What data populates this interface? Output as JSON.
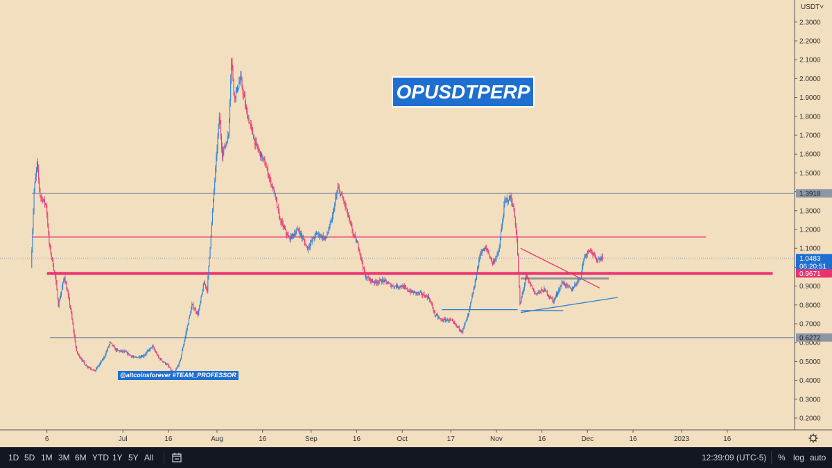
{
  "header": {
    "unit_label": "USDT˅"
  },
  "watermark_text": "OPUSDTPERP",
  "credit_text": "@altcoinsforever #TEAM_PROFESSOR",
  "colors": {
    "background": "#f2dfc0",
    "up_candle": "#2a7fd4",
    "down_candle": "#e8336e",
    "gray_line": "#8f96a3",
    "red_line": "#e8336e",
    "blue_line": "#2a7fd4",
    "last_price_badge": "#1f6fd0",
    "toolbar": "#131722"
  },
  "toolbar": {
    "ranges": [
      "1D",
      "5D",
      "1M",
      "3M",
      "6M",
      "YTD",
      "1Y",
      "5Y",
      "All"
    ],
    "calendar_icon": "calendar-range-icon",
    "time": "12:39:09 (UTC-5)",
    "percent": "%",
    "log": "log",
    "auto": "auto"
  },
  "chart_data": {
    "type": "candlestick",
    "title": "OPUSDTPERP",
    "y_axis_unit": "USDT",
    "ylim": [
      0.1,
      2.3
    ],
    "y_ticks": [
      "0.2000",
      "0.3000",
      "0.4000",
      "0.5000",
      "0.6000",
      "0.7000",
      "0.8000",
      "0.9000",
      "1.0000",
      "1.1000",
      "1.2000",
      "1.3000",
      "1.4000",
      "1.5000",
      "1.6000",
      "1.7000",
      "1.8000",
      "1.9000",
      "2.0000",
      "2.1000",
      "2.2000",
      "2.3000"
    ],
    "x_ticks": [
      {
        "label": "6",
        "date": "2022-06-06"
      },
      {
        "label": "Jul",
        "date": "2022-07-01"
      },
      {
        "label": "16",
        "date": "2022-07-16"
      },
      {
        "label": "Aug",
        "date": "2022-08-01"
      },
      {
        "label": "16",
        "date": "2022-08-16"
      },
      {
        "label": "Sep",
        "date": "2022-09-01"
      },
      {
        "label": "16",
        "date": "2022-09-16"
      },
      {
        "label": "Oct",
        "date": "2022-10-01"
      },
      {
        "label": "17",
        "date": "2022-10-17"
      },
      {
        "label": "Nov",
        "date": "2022-11-01"
      },
      {
        "label": "16",
        "date": "2022-11-16"
      },
      {
        "label": "Dec",
        "date": "2022-12-01"
      },
      {
        "label": "16",
        "date": "2022-12-16"
      },
      {
        "label": "2023",
        "date": "2023-01-01"
      },
      {
        "label": "16",
        "date": "2023-01-16"
      }
    ],
    "price_levels": [
      {
        "label": "1.3918",
        "value": 1.3918,
        "color": "gray"
      },
      {
        "label": "0.6272",
        "value": 0.6272,
        "color": "gray"
      }
    ],
    "last_price": {
      "value": "1.0483",
      "countdown": "06:20:51"
    },
    "red_level_label": {
      "value": "0.9671"
    },
    "path": [
      {
        "date": "2022-06-01",
        "price": 1.0
      },
      {
        "date": "2022-06-02",
        "price": 1.4
      },
      {
        "date": "2022-06-03",
        "price": 1.55
      },
      {
        "date": "2022-06-04",
        "price": 1.38
      },
      {
        "date": "2022-06-06",
        "price": 1.33
      },
      {
        "date": "2022-06-07",
        "price": 1.12
      },
      {
        "date": "2022-06-09",
        "price": 0.95
      },
      {
        "date": "2022-06-10",
        "price": 0.8
      },
      {
        "date": "2022-06-12",
        "price": 0.95
      },
      {
        "date": "2022-06-14",
        "price": 0.78
      },
      {
        "date": "2022-06-16",
        "price": 0.55
      },
      {
        "date": "2022-06-19",
        "price": 0.48
      },
      {
        "date": "2022-06-22",
        "price": 0.45
      },
      {
        "date": "2022-06-25",
        "price": 0.52
      },
      {
        "date": "2022-06-27",
        "price": 0.6
      },
      {
        "date": "2022-06-29",
        "price": 0.56
      },
      {
        "date": "2022-07-02",
        "price": 0.55
      },
      {
        "date": "2022-07-05",
        "price": 0.52
      },
      {
        "date": "2022-07-08",
        "price": 0.53
      },
      {
        "date": "2022-07-11",
        "price": 0.58
      },
      {
        "date": "2022-07-13",
        "price": 0.52
      },
      {
        "date": "2022-07-16",
        "price": 0.48
      },
      {
        "date": "2022-07-18",
        "price": 0.43
      },
      {
        "date": "2022-07-20",
        "price": 0.5
      },
      {
        "date": "2022-07-22",
        "price": 0.65
      },
      {
        "date": "2022-07-24",
        "price": 0.8
      },
      {
        "date": "2022-07-26",
        "price": 0.75
      },
      {
        "date": "2022-07-28",
        "price": 0.92
      },
      {
        "date": "2022-07-29",
        "price": 0.88
      },
      {
        "date": "2022-07-31",
        "price": 1.35
      },
      {
        "date": "2022-08-02",
        "price": 1.8
      },
      {
        "date": "2022-08-03",
        "price": 1.6
      },
      {
        "date": "2022-08-05",
        "price": 1.7
      },
      {
        "date": "2022-08-06",
        "price": 2.1
      },
      {
        "date": "2022-08-07",
        "price": 1.9
      },
      {
        "date": "2022-08-09",
        "price": 2.0
      },
      {
        "date": "2022-08-11",
        "price": 1.82
      },
      {
        "date": "2022-08-14",
        "price": 1.65
      },
      {
        "date": "2022-08-17",
        "price": 1.55
      },
      {
        "date": "2022-08-20",
        "price": 1.4
      },
      {
        "date": "2022-08-22",
        "price": 1.25
      },
      {
        "date": "2022-08-25",
        "price": 1.15
      },
      {
        "date": "2022-08-28",
        "price": 1.2
      },
      {
        "date": "2022-08-31",
        "price": 1.1
      },
      {
        "date": "2022-09-03",
        "price": 1.18
      },
      {
        "date": "2022-09-06",
        "price": 1.15
      },
      {
        "date": "2022-09-08",
        "price": 1.25
      },
      {
        "date": "2022-09-10",
        "price": 1.42
      },
      {
        "date": "2022-09-12",
        "price": 1.35
      },
      {
        "date": "2022-09-15",
        "price": 1.18
      },
      {
        "date": "2022-09-17",
        "price": 1.1
      },
      {
        "date": "2022-09-19",
        "price": 0.95
      },
      {
        "date": "2022-09-22",
        "price": 0.92
      },
      {
        "date": "2022-09-25",
        "price": 0.93
      },
      {
        "date": "2022-09-28",
        "price": 0.9
      },
      {
        "date": "2022-10-01",
        "price": 0.9
      },
      {
        "date": "2022-10-04",
        "price": 0.87
      },
      {
        "date": "2022-10-07",
        "price": 0.86
      },
      {
        "date": "2022-10-10",
        "price": 0.84
      },
      {
        "date": "2022-10-12",
        "price": 0.75
      },
      {
        "date": "2022-10-14",
        "price": 0.72
      },
      {
        "date": "2022-10-17",
        "price": 0.72
      },
      {
        "date": "2022-10-19",
        "price": 0.69
      },
      {
        "date": "2022-10-21",
        "price": 0.66
      },
      {
        "date": "2022-10-23",
        "price": 0.75
      },
      {
        "date": "2022-10-25",
        "price": 0.9
      },
      {
        "date": "2022-10-27",
        "price": 1.08
      },
      {
        "date": "2022-10-29",
        "price": 1.1
      },
      {
        "date": "2022-10-31",
        "price": 1.02
      },
      {
        "date": "2022-11-02",
        "price": 1.08
      },
      {
        "date": "2022-11-04",
        "price": 1.35
      },
      {
        "date": "2022-11-06",
        "price": 1.37
      },
      {
        "date": "2022-11-07",
        "price": 1.3
      },
      {
        "date": "2022-11-08",
        "price": 1.15
      },
      {
        "date": "2022-11-09",
        "price": 0.8
      },
      {
        "date": "2022-11-11",
        "price": 0.95
      },
      {
        "date": "2022-11-14",
        "price": 0.86
      },
      {
        "date": "2022-11-17",
        "price": 0.88
      },
      {
        "date": "2022-11-20",
        "price": 0.82
      },
      {
        "date": "2022-11-23",
        "price": 0.92
      },
      {
        "date": "2022-11-26",
        "price": 0.88
      },
      {
        "date": "2022-11-29",
        "price": 0.95
      },
      {
        "date": "2022-11-30",
        "price": 1.05
      },
      {
        "date": "2022-12-02",
        "price": 1.1
      },
      {
        "date": "2022-12-04",
        "price": 1.04
      },
      {
        "date": "2022-12-06",
        "price": 1.05
      }
    ],
    "annotations": [
      {
        "type": "hline",
        "color": "red",
        "value": 1.16,
        "from": "2022-06-01",
        "to": "2023-01-09"
      },
      {
        "type": "hline",
        "color": "red",
        "value": 0.9671,
        "from": "2022-06-06",
        "to": "2023-01-31"
      },
      {
        "type": "hline",
        "color": "gray",
        "value": 0.94,
        "from": "2022-11-09",
        "to": "2022-12-08"
      },
      {
        "type": "hline",
        "color": "blue",
        "value": 0.775,
        "from": "2022-10-14",
        "to": "2022-11-08"
      },
      {
        "type": "trendline",
        "color": "red",
        "from": [
          "2022-11-09",
          1.1
        ],
        "to": [
          "2022-12-05",
          0.89
        ]
      },
      {
        "type": "trendline",
        "color": "blue",
        "from": [
          "2022-11-09",
          0.76
        ],
        "to": [
          "2022-12-11",
          0.84
        ]
      },
      {
        "type": "trendline",
        "color": "blue",
        "from": [
          "2022-11-09",
          0.77
        ],
        "to": [
          "2022-11-23",
          0.77
        ]
      }
    ]
  }
}
